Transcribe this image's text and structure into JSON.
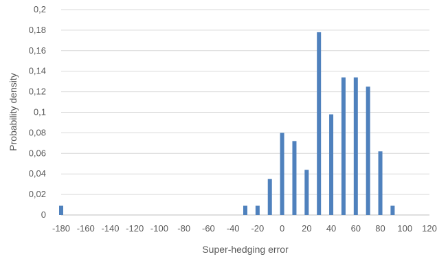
{
  "chart_data": {
    "type": "bar",
    "title": "",
    "xlabel": "Super-hedging error",
    "ylabel": "Probability density",
    "xlim": [
      -180,
      120
    ],
    "ylim": [
      0,
      0.2
    ],
    "x_ticks": [
      -180,
      -160,
      -140,
      -120,
      -100,
      -80,
      -60,
      -40,
      -20,
      0,
      20,
      40,
      60,
      80,
      100,
      120
    ],
    "x_tick_labels": [
      "-180",
      "-160",
      "-140",
      "-120",
      "-100",
      "-80",
      "-60",
      "-40",
      "-20",
      "0",
      "20",
      "40",
      "60",
      "80",
      "100",
      "120"
    ],
    "y_ticks": [
      0,
      0.02,
      0.04,
      0.06,
      0.08,
      0.1,
      0.12,
      0.14,
      0.16,
      0.18,
      0.2
    ],
    "y_tick_labels": [
      "0",
      "0,02",
      "0,04",
      "0,06",
      "0,08",
      "0,1",
      "0,12",
      "0,14",
      "0,16",
      "0,18",
      "0,2"
    ],
    "grid": true,
    "series": [
      {
        "color": "#4f81bd",
        "points": [
          {
            "x": -180,
            "y": 0.009
          },
          {
            "x": -30,
            "y": 0.009
          },
          {
            "x": -20,
            "y": 0.009
          },
          {
            "x": -10,
            "y": 0.035
          },
          {
            "x": 0,
            "y": 0.08
          },
          {
            "x": 10,
            "y": 0.072
          },
          {
            "x": 20,
            "y": 0.044
          },
          {
            "x": 30,
            "y": 0.178
          },
          {
            "x": 40,
            "y": 0.098
          },
          {
            "x": 50,
            "y": 0.134
          },
          {
            "x": 60,
            "y": 0.134
          },
          {
            "x": 70,
            "y": 0.125
          },
          {
            "x": 80,
            "y": 0.062
          },
          {
            "x": 90,
            "y": 0.009
          }
        ]
      }
    ]
  }
}
